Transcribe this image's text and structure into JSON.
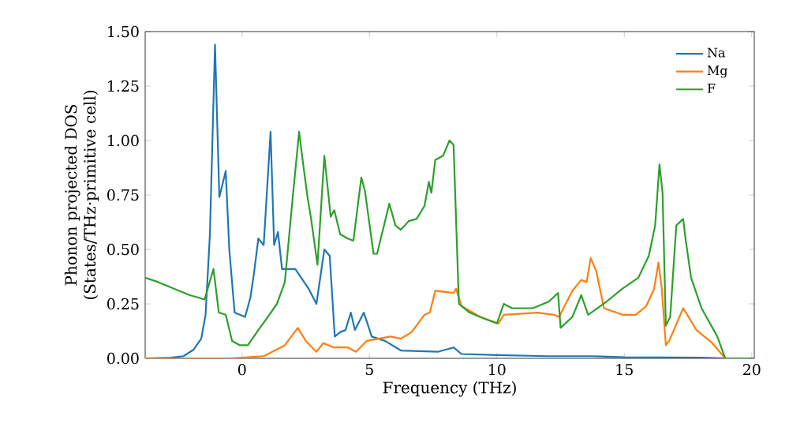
{
  "chart_data": {
    "type": "line",
    "xlabel": "Frequency (THz)",
    "ylabel": "Phonon projected DOS (States/THz·primitive cell)",
    "xlim": [
      -3.8,
      20.1
    ],
    "ylim": [
      0,
      1.5
    ],
    "xticks": [
      0,
      5,
      10,
      15,
      20
    ],
    "yticks": [
      {
        "value": 0,
        "label": "0.00"
      },
      {
        "value": 0.25,
        "label": "0.25"
      },
      {
        "value": 0.5,
        "label": "0.50"
      },
      {
        "value": 0.75,
        "label": "0.75"
      },
      {
        "value": 1.0,
        "label": "1.00"
      },
      {
        "value": 1.25,
        "label": "1.25"
      },
      {
        "value": 1.5,
        "label": "1.50"
      }
    ],
    "legend": "top right",
    "line_style": "solid",
    "marker": "none",
    "series": [
      {
        "name": "Na",
        "color": "#1f77b4",
        "x": [
          -3.8,
          -2.8,
          -2.3,
          -1.9,
          -1.6,
          -1.43,
          -1.26,
          -1.06,
          -0.89,
          -0.64,
          -0.5,
          -0.29,
          0.12,
          0.33,
          0.48,
          0.64,
          0.85,
          1.12,
          1.26,
          1.41,
          1.57,
          2.09,
          2.61,
          2.92,
          3.23,
          3.44,
          3.64,
          3.85,
          4.06,
          4.27,
          4.43,
          4.78,
          5.09,
          5.61,
          6.23,
          7.68,
          8.3,
          8.61,
          10,
          12,
          13.7,
          15,
          18,
          19,
          20.1
        ],
        "values": [
          0,
          0.003,
          0.01,
          0.04,
          0.09,
          0.2,
          0.57,
          1.44,
          0.74,
          0.86,
          0.5,
          0.21,
          0.19,
          0.28,
          0.4,
          0.55,
          0.52,
          1.04,
          0.52,
          0.58,
          0.41,
          0.41,
          0.32,
          0.25,
          0.5,
          0.47,
          0.1,
          0.12,
          0.13,
          0.21,
          0.13,
          0.21,
          0.1,
          0.08,
          0.036,
          0.03,
          0.05,
          0.02,
          0.015,
          0.01,
          0.01,
          0.005,
          0.003,
          0,
          0
        ]
      },
      {
        "name": "Mg",
        "color": "#ff7f0e",
        "x": [
          -3.8,
          -0.5,
          0.85,
          1.68,
          2.19,
          2.5,
          2.92,
          3.19,
          3.6,
          4.16,
          4.47,
          4.89,
          5.82,
          6.23,
          6.65,
          7.16,
          7.37,
          7.58,
          8.3,
          8.4,
          8.61,
          9.34,
          10.06,
          10.27,
          11.6,
          12.24,
          12.44,
          12.96,
          13.31,
          13.52,
          13.68,
          13.9,
          14.2,
          14.93,
          15.45,
          15.86,
          16.17,
          16.34,
          16.47,
          16.63,
          16.76,
          17.31,
          17.52,
          17.83,
          18.45,
          18.96,
          20.1
        ],
        "values": [
          0,
          0,
          0.01,
          0.06,
          0.14,
          0.08,
          0.03,
          0.07,
          0.05,
          0.05,
          0.03,
          0.08,
          0.1,
          0.09,
          0.12,
          0.2,
          0.21,
          0.31,
          0.3,
          0.32,
          0.24,
          0.19,
          0.16,
          0.2,
          0.21,
          0.2,
          0.19,
          0.31,
          0.36,
          0.35,
          0.46,
          0.4,
          0.23,
          0.2,
          0.2,
          0.24,
          0.32,
          0.44,
          0.32,
          0.06,
          0.08,
          0.23,
          0.19,
          0.13,
          0.07,
          0,
          0
        ]
      },
      {
        "name": "F",
        "color": "#2ca02c",
        "x": [
          -3.8,
          -3.29,
          -2.67,
          -2.05,
          -1.74,
          -1.47,
          -1.12,
          -0.91,
          -0.64,
          -0.39,
          -0.08,
          0.23,
          0.64,
          0.95,
          1.37,
          1.68,
          1.99,
          2.24,
          2.4,
          2.57,
          2.71,
          2.96,
          3.23,
          3.48,
          3.62,
          3.85,
          4.15,
          4.37,
          4.68,
          4.82,
          5.16,
          5.3,
          5.78,
          6.02,
          6.23,
          6.54,
          6.85,
          7.16,
          7.33,
          7.43,
          7.58,
          7.89,
          8.14,
          8.3,
          8.51,
          8.93,
          9.55,
          10.0,
          10.27,
          10.6,
          11.41,
          12.03,
          12.4,
          12.5,
          12.96,
          13.31,
          13.58,
          14.3,
          14.93,
          15.55,
          15.96,
          16.21,
          16.38,
          16.5,
          16.63,
          16.8,
          17.04,
          17.31,
          17.4,
          17.62,
          18.03,
          18.65,
          18.96,
          20.1
        ],
        "values": [
          0.37,
          0.35,
          0.32,
          0.29,
          0.28,
          0.27,
          0.41,
          0.21,
          0.2,
          0.08,
          0.06,
          0.06,
          0.13,
          0.18,
          0.25,
          0.35,
          0.74,
          1.04,
          0.89,
          0.74,
          0.64,
          0.43,
          0.93,
          0.65,
          0.68,
          0.57,
          0.55,
          0.54,
          0.83,
          0.77,
          0.48,
          0.48,
          0.71,
          0.61,
          0.59,
          0.63,
          0.64,
          0.7,
          0.81,
          0.76,
          0.91,
          0.93,
          1.0,
          0.98,
          0.25,
          0.21,
          0.18,
          0.16,
          0.25,
          0.23,
          0.23,
          0.26,
          0.3,
          0.14,
          0.19,
          0.29,
          0.2,
          0.26,
          0.32,
          0.37,
          0.47,
          0.61,
          0.89,
          0.76,
          0.15,
          0.19,
          0.61,
          0.64,
          0.55,
          0.37,
          0.23,
          0.1,
          0,
          0
        ]
      }
    ]
  }
}
